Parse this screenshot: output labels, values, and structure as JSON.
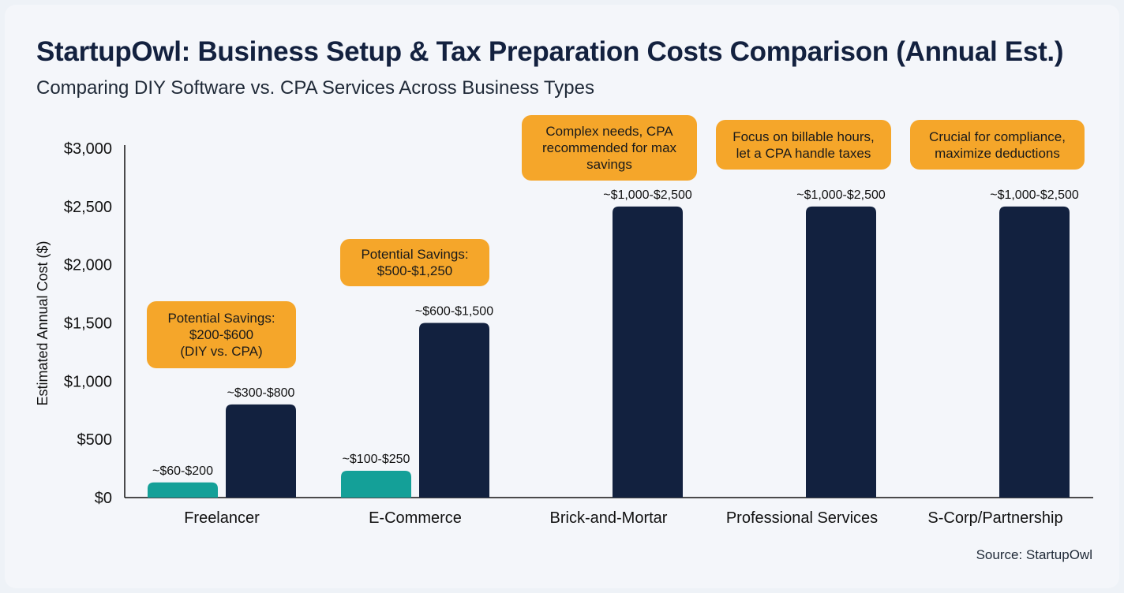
{
  "title": "StartupOwl: Business Setup & Tax Preparation Costs Comparison (Annual Est.)",
  "subtitle": "Comparing DIY Software vs. CPA Services Across Business Types",
  "source": "Source: StartupOwl",
  "chart_data": {
    "type": "bar",
    "title": "StartupOwl: Business Setup & Tax Preparation Costs Comparison (Annual Est.)",
    "ylabel": "Estimated Annual Cost ($)",
    "xlabel": "",
    "ylim": [
      0,
      3000
    ],
    "yticks": [
      "$0",
      "$500",
      "$1,000",
      "$1,500",
      "$2,000",
      "$2,500",
      "$3,000"
    ],
    "ytick_values": [
      0,
      500,
      1000,
      1500,
      2000,
      2500,
      3000
    ],
    "grid": false,
    "categories": [
      "Freelancer",
      "E-Commerce",
      "Brick-and-Mortar",
      "Professional Services",
      "S-Corp/Partnership"
    ],
    "series": [
      {
        "color": "#14a098",
        "values": [
          130,
          230,
          null,
          null,
          null
        ],
        "labels": [
          "~$60-$200",
          "~$100-$250",
          null,
          null,
          null
        ]
      },
      {
        "color": "#12213f",
        "values": [
          800,
          1500,
          2500,
          2500,
          2500
        ],
        "labels": [
          "~$300-$800",
          "~$600-$1,500",
          "~$1,000-$2,500",
          "~$1,000-$2,500",
          "~$1,000-$2,500"
        ]
      }
    ],
    "annotations": [
      "Potential Savings:\n$200-$600\n(DIY vs. CPA)",
      "Potential Savings:\n$500-$1,250",
      "Complex needs, CPA\nrecommended for max\nsavings",
      "Focus on billable hours,\nlet a CPA handle taxes",
      "Crucial for compliance,\nmaximize deductions"
    ],
    "annotation_color": "#f5a62a"
  }
}
